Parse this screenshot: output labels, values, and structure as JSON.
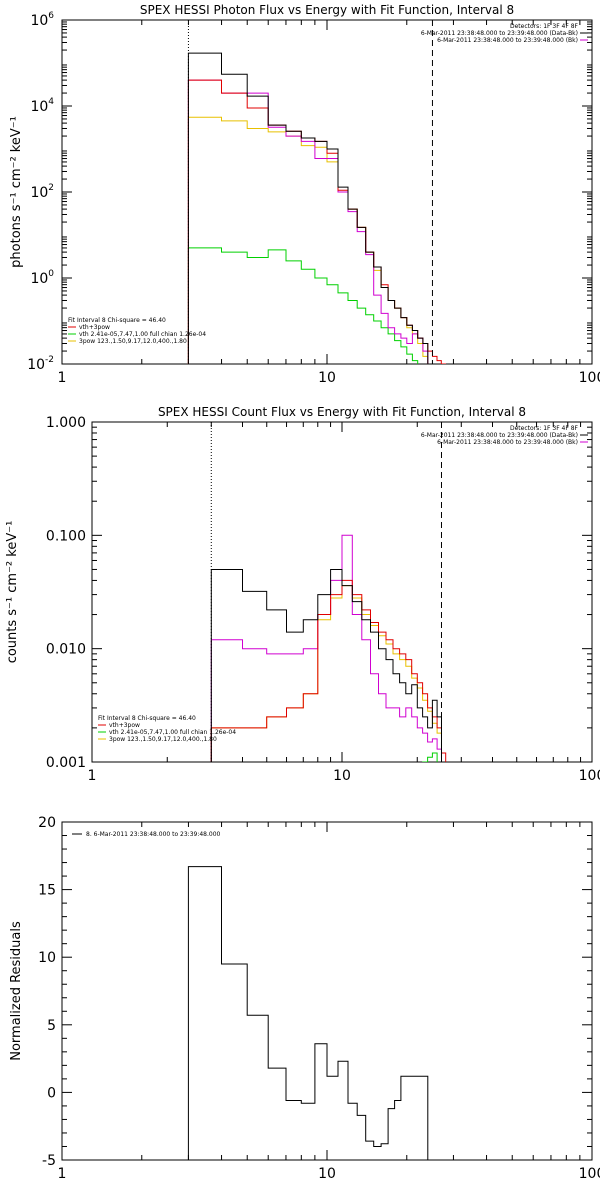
{
  "colors": {
    "black": "#000000",
    "red": "#e00000",
    "green": "#00d000",
    "orange": "#e8c000",
    "magenta": "#d000d0"
  },
  "chart_data": [
    {
      "type": "line",
      "title": "SPEX HESSI Photon Flux vs Energy with Fit Function, Interval 8",
      "ylabel": "photons s⁻¹ cm⁻² keV⁻¹",
      "xlabel": "",
      "xscale": "log",
      "yscale": "log",
      "xlim": [
        1,
        100
      ],
      "ylim": [
        0.01,
        1000000
      ],
      "xticks": [
        "1",
        "10",
        "100"
      ],
      "yticks": [
        {
          "label": "10",
          "exp": "-2",
          "v": 0.01
        },
        {
          "label": "10",
          "exp": "0",
          "v": 1
        },
        {
          "label": "10",
          "exp": "2",
          "v": 100
        },
        {
          "label": "10",
          "exp": "4",
          "v": 10000
        },
        {
          "label": "10",
          "exp": "6",
          "v": 1000000
        }
      ],
      "vlines": [
        {
          "x": 3,
          "style": "dotted"
        },
        {
          "x": 25,
          "style": "dashed"
        }
      ],
      "legend_topright": [
        {
          "text": "Detectors: 1F 3F 4F 8F",
          "color": "#000000"
        },
        {
          "text": "6-Mar-2011 23:38:48.000 to 23:39:48.000 (Data-Bk)",
          "color": "#000000"
        },
        {
          "text": "6-Mar-2011 23:38:48.000 to 23:39:48.000 (Bk)",
          "color": "#d000d0"
        }
      ],
      "legend_bottomleft": [
        {
          "text": "Fit Interval 8   Chi-square = 46.40",
          "color": "#000000"
        },
        {
          "text": "vth+3pow",
          "color": "#e00000"
        },
        {
          "text": "vth 2.41e-05,7.47,1.00  full chian 1.26e-04",
          "color": "#00d000"
        },
        {
          "text": "3pow 123.,1.50,9.17,12.0,400.,1.80",
          "color": "#e8c000"
        }
      ],
      "edges": [
        3,
        4,
        5,
        6,
        7,
        8,
        9,
        10,
        11,
        12,
        13,
        14,
        15,
        16,
        17,
        18,
        19,
        20,
        21,
        22,
        23,
        24,
        25,
        26,
        27,
        28,
        29,
        30
      ],
      "series": [
        {
          "color": "#000000",
          "values": [
            170000,
            55000,
            17000,
            3600,
            2600,
            1800,
            1500,
            1000,
            130,
            40,
            15,
            4,
            1.8,
            0.6,
            0.3,
            0.2,
            0.12,
            0.08,
            0.06,
            0.04,
            0.03,
            0.01
          ]
        },
        {
          "color": "#e00000",
          "values": [
            40000,
            20000,
            9000,
            3600,
            2600,
            1800,
            1500,
            800,
            110,
            40,
            15,
            4,
            1.8,
            0.7,
            0.3,
            0.2,
            0.12,
            0.08,
            0.06,
            0.04,
            0.03,
            0.02,
            0.015,
            0.012,
            0.01
          ]
        },
        {
          "color": "#d000d0",
          "values": [
            40000,
            20000,
            20000,
            3200,
            2000,
            1500,
            600,
            600,
            100,
            35,
            12,
            3.5,
            0.4,
            0.15,
            0.07,
            0.05,
            0.04,
            0.03,
            0.05,
            0.04,
            0.02,
            0.01
          ]
        },
        {
          "color": "#e8c000",
          "values": [
            5500,
            4500,
            3000,
            2500,
            2000,
            1200,
            1100,
            500,
            100,
            40,
            15,
            4,
            1.5,
            0.6,
            0.3,
            0.2,
            0.12,
            0.07,
            0.05,
            0.03,
            0.015,
            0.01
          ]
        },
        {
          "color": "#00d000",
          "values": [
            5,
            4,
            3,
            4.5,
            2.5,
            1.6,
            1,
            0.7,
            0.45,
            0.3,
            0.2,
            0.14,
            0.1,
            0.07,
            0.05,
            0.035,
            0.025,
            0.017,
            0.012,
            0.009
          ]
        }
      ]
    },
    {
      "type": "line",
      "title": "SPEX HESSI Count Flux vs Energy with Fit Function, Interval 8",
      "ylabel": "counts s⁻¹ cm⁻² keV⁻¹",
      "xlabel": "",
      "xscale": "log",
      "yscale": "log",
      "xlim": [
        1,
        100
      ],
      "ylim": [
        0.001,
        1
      ],
      "xticks": [
        "1",
        "10",
        "100"
      ],
      "yticks": [
        {
          "label": "0.001",
          "v": 0.001
        },
        {
          "label": "0.010",
          "v": 0.01
        },
        {
          "label": "0.100",
          "v": 0.1
        },
        {
          "label": "1.000",
          "v": 1
        }
      ],
      "vlines": [
        {
          "x": 3,
          "style": "dotted"
        },
        {
          "x": 25,
          "style": "dashed"
        }
      ],
      "legend_topright": [
        {
          "text": "Detectors: 1F 3F 4F 8F",
          "color": "#000000"
        },
        {
          "text": "6-Mar-2011 23:38:48.000 to 23:39:48.000 (Data-Bk)",
          "color": "#000000"
        },
        {
          "text": "6-Mar-2011 23:38:48.000 to 23:39:48.000 (Bk)",
          "color": "#d000d0"
        }
      ],
      "legend_bottomleft": [
        {
          "text": "Fit Interval 8   Chi-square = 46.40",
          "color": "#000000"
        },
        {
          "text": "vth+3pow",
          "color": "#e00000"
        },
        {
          "text": "vth 2.41e-05,7.47,1.00  full chian 1.26e-04",
          "color": "#00d000"
        },
        {
          "text": "3pow 123.,1.50,9.17,12.0,400.,1.80",
          "color": "#e8c000"
        }
      ],
      "edges": [
        3,
        4,
        5,
        6,
        7,
        8,
        9,
        10,
        11,
        12,
        13,
        14,
        15,
        16,
        17,
        18,
        19,
        20,
        21,
        22,
        23,
        24,
        25,
        26,
        27
      ],
      "series": [
        {
          "color": "#000000",
          "values": [
            0.05,
            0.032,
            0.022,
            0.014,
            0.018,
            0.03,
            0.05,
            0.036,
            0.026,
            0.018,
            0.014,
            0.01,
            0.008,
            0.006,
            0.005,
            0.004,
            0.0048,
            0.003,
            0.0025,
            0.002,
            0.0035,
            0.0025
          ]
        },
        {
          "color": "#e00000",
          "values": [
            0.002,
            0.002,
            0.0025,
            0.003,
            0.004,
            0.02,
            0.03,
            0.04,
            0.03,
            0.022,
            0.017,
            0.014,
            0.012,
            0.01,
            0.009,
            0.008,
            0.006,
            0.005,
            0.004,
            0.003,
            0.0025,
            0.002,
            0.0012
          ]
        },
        {
          "color": "#d000d0",
          "values": [
            0.012,
            0.01,
            0.009,
            0.009,
            0.01,
            0.02,
            0.04,
            0.1,
            0.02,
            0.012,
            0.006,
            0.004,
            0.003,
            0.003,
            0.0025,
            0.003,
            0.0025,
            0.002,
            0.0018,
            0.0015,
            0.0016,
            0.0013
          ]
        },
        {
          "color": "#e8c000",
          "values": [
            0.002,
            0.002,
            0.0025,
            0.003,
            0.004,
            0.018,
            0.028,
            0.036,
            0.028,
            0.02,
            0.016,
            0.013,
            0.011,
            0.009,
            0.008,
            0.007,
            0.0055,
            0.0045,
            0.0035,
            0.0028,
            0.0022,
            0.0018
          ]
        },
        {
          "color": "#00d000",
          "values": [
            null,
            null,
            null,
            null,
            null,
            null,
            null,
            null,
            null,
            null,
            null,
            null,
            null,
            null,
            null,
            null,
            null,
            null,
            0.001,
            0.0011,
            0.0012
          ]
        }
      ]
    },
    {
      "type": "line",
      "title": "",
      "ylabel": "Normalized Residuals",
      "xlabel": "",
      "xscale": "log",
      "yscale": "linear",
      "xlim": [
        1,
        100
      ],
      "ylim": [
        -5,
        20
      ],
      "xticks": [
        "1",
        "10",
        "100"
      ],
      "yticks": [
        {
          "label": "-5",
          "v": -5
        },
        {
          "label": "0",
          "v": 0
        },
        {
          "label": "5",
          "v": 5
        },
        {
          "label": "10",
          "v": 10
        },
        {
          "label": "15",
          "v": 15
        },
        {
          "label": "20",
          "v": 20
        }
      ],
      "vlines": [],
      "legend_topleft": [
        {
          "text": "8.  6-Mar-2011 23:38:48.000 to 23:39:48.000",
          "color": "#000000"
        }
      ],
      "edges": [
        3,
        4,
        5,
        6,
        7,
        8,
        9,
        10,
        11,
        12,
        13,
        14,
        15,
        16,
        17,
        18,
        19,
        20,
        21,
        22,
        23,
        24,
        25
      ],
      "series": [
        {
          "color": "#000000",
          "values": [
            16.7,
            9.5,
            5.7,
            1.8,
            -0.6,
            -0.8,
            3.6,
            1.2,
            2.3,
            -0.8,
            -1.7,
            -3.6,
            -4.0,
            -3.8,
            -1.2,
            -0.6,
            1.2,
            1.2,
            1.2,
            1.2,
            1.2
          ]
        }
      ]
    }
  ]
}
